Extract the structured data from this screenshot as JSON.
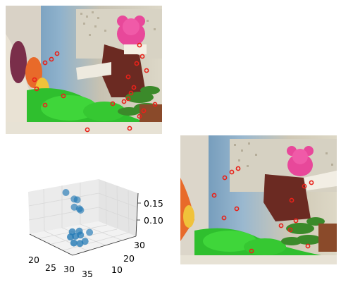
{
  "figure": {
    "photo_top": {
      "feature_markers": 22,
      "marker_color": "#e8221a",
      "scene": "plush teddy bear, green plush toy, potted plant, quilt"
    },
    "photo_bottom": {
      "feature_markers": 14,
      "marker_color": "#e8221a",
      "scene": "same scene, second view"
    }
  },
  "chart_data": {
    "type": "scatter",
    "projection": "3d",
    "title": "",
    "xlabel": "",
    "ylabel": "",
    "zlabel": "",
    "x_ticks": [
      "20",
      "25",
      "30",
      "35"
    ],
    "y_ticks": [
      "10",
      "20",
      "30"
    ],
    "z_ticks": [
      "0.10",
      "0.15"
    ],
    "xlim": [
      17,
      37
    ],
    "ylim": [
      5,
      37
    ],
    "zlim": [
      0.04,
      0.19
    ],
    "grid": true,
    "marker_color": "#1f77b4",
    "points": [
      {
        "x": 19,
        "y": 24,
        "z": 0.175
      },
      {
        "x": 21,
        "y": 26,
        "z": 0.155
      },
      {
        "x": 21.5,
        "y": 27,
        "z": 0.152
      },
      {
        "x": 22,
        "y": 25,
        "z": 0.132
      },
      {
        "x": 22.5,
        "y": 27,
        "z": 0.124
      },
      {
        "x": 24,
        "y": 26,
        "z": 0.127
      },
      {
        "x": 27.5,
        "y": 18,
        "z": 0.08
      },
      {
        "x": 28,
        "y": 21,
        "z": 0.078
      },
      {
        "x": 28.5,
        "y": 16,
        "z": 0.07
      },
      {
        "x": 29,
        "y": 18,
        "z": 0.07
      },
      {
        "x": 29.5,
        "y": 20,
        "z": 0.072
      },
      {
        "x": 30,
        "y": 24,
        "z": 0.075
      },
      {
        "x": 31,
        "y": 15,
        "z": 0.06
      },
      {
        "x": 32,
        "y": 17,
        "z": 0.058
      },
      {
        "x": 32.5,
        "y": 19,
        "z": 0.063
      }
    ]
  }
}
